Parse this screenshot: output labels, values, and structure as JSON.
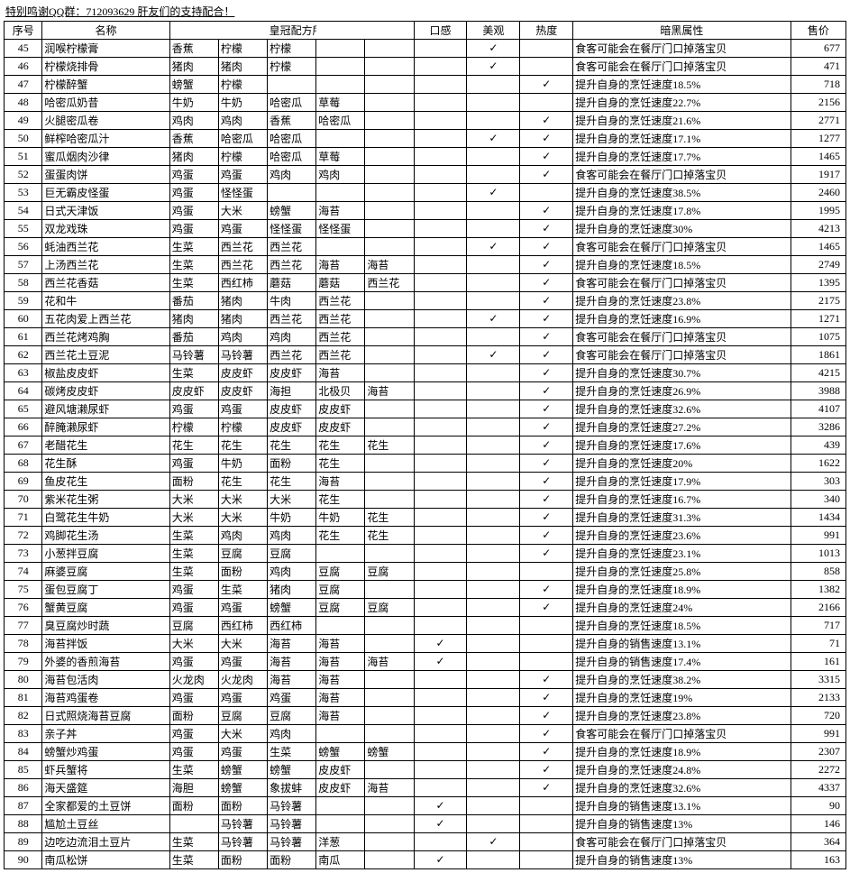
{
  "headerNote": "特别鸣谢QQ群：712093629 肝友们的支持配合！",
  "columns": {
    "idx": "序号",
    "name": "名称",
    "ingredients": "皇冠配方所需食材",
    "taste": "口感",
    "look": "美观",
    "heat": "热度",
    "dark": "暗黑属性",
    "price": "售价"
  },
  "rows": [
    {
      "idx": 45,
      "name": "润喉柠檬膏",
      "ing": [
        "香蕉",
        "柠檬",
        "柠檬",
        "",
        ""
      ],
      "taste": "",
      "look": "✓",
      "heat": "",
      "dark": "食客可能会在餐厅门口掉落宝贝",
      "price": 677
    },
    {
      "idx": 46,
      "name": "柠檬烧排骨",
      "ing": [
        "猪肉",
        "猪肉",
        "柠檬",
        "",
        ""
      ],
      "taste": "",
      "look": "✓",
      "heat": "",
      "dark": "食客可能会在餐厅门口掉落宝贝",
      "price": 471
    },
    {
      "idx": 47,
      "name": "柠檬醉蟹",
      "ing": [
        "螃蟹",
        "柠檬",
        "",
        "",
        ""
      ],
      "taste": "",
      "look": "",
      "heat": "✓",
      "dark": "提升自身的烹饪速度18.5%",
      "price": 718
    },
    {
      "idx": 48,
      "name": "哈密瓜奶昔",
      "ing": [
        "牛奶",
        "牛奶",
        "哈密瓜",
        "草莓",
        ""
      ],
      "taste": "",
      "look": "",
      "heat": "",
      "dark": "提升自身的烹饪速度22.7%",
      "price": 2156
    },
    {
      "idx": 49,
      "name": "火腿密瓜卷",
      "ing": [
        "鸡肉",
        "鸡肉",
        "香蕉",
        "哈密瓜",
        ""
      ],
      "taste": "",
      "look": "",
      "heat": "✓",
      "dark": "提升自身的烹饪速度21.6%",
      "price": 2771
    },
    {
      "idx": 50,
      "name": "鲜榨哈密瓜汁",
      "ing": [
        "香蕉",
        "哈密瓜",
        "哈密瓜",
        "",
        ""
      ],
      "taste": "",
      "look": "✓",
      "heat": "✓",
      "dark": "提升自身的烹饪速度17.1%",
      "price": 1277
    },
    {
      "idx": 51,
      "name": "蜜瓜烟肉沙律",
      "ing": [
        "猪肉",
        "柠檬",
        "哈密瓜",
        "草莓",
        ""
      ],
      "taste": "",
      "look": "",
      "heat": "✓",
      "dark": "提升自身的烹饪速度17.7%",
      "price": 1465
    },
    {
      "idx": 52,
      "name": "蛋蛋肉饼",
      "ing": [
        "鸡蛋",
        "鸡蛋",
        "鸡肉",
        "鸡肉",
        ""
      ],
      "taste": "",
      "look": "",
      "heat": "✓",
      "dark": "食客可能会在餐厅门口掉落宝贝",
      "price": 1917
    },
    {
      "idx": 53,
      "name": "巨无霸皮怪蛋",
      "ing": [
        "鸡蛋",
        "怪怪蛋",
        "",
        "",
        ""
      ],
      "taste": "",
      "look": "✓",
      "heat": "",
      "dark": "提升自身的烹饪速度38.5%",
      "price": 2460
    },
    {
      "idx": 54,
      "name": "日式天津饭",
      "ing": [
        "鸡蛋",
        "大米",
        "螃蟹",
        "海苔",
        ""
      ],
      "taste": "",
      "look": "",
      "heat": "✓",
      "dark": "提升自身的烹饪速度17.8%",
      "price": 1995
    },
    {
      "idx": 55,
      "name": "双龙戏珠",
      "ing": [
        "鸡蛋",
        "鸡蛋",
        "怪怪蛋",
        "怪怪蛋",
        ""
      ],
      "taste": "",
      "look": "",
      "heat": "✓",
      "dark": "提升自身的烹饪速度30%",
      "price": 4213
    },
    {
      "idx": 56,
      "name": "蚝油西兰花",
      "ing": [
        "生菜",
        "西兰花",
        "西兰花",
        "",
        ""
      ],
      "taste": "",
      "look": "✓",
      "heat": "✓",
      "dark": "食客可能会在餐厅门口掉落宝贝",
      "price": 1465
    },
    {
      "idx": 57,
      "name": "上汤西兰花",
      "ing": [
        "生菜",
        "西兰花",
        "西兰花",
        "海苔",
        "海苔"
      ],
      "taste": "",
      "look": "",
      "heat": "✓",
      "dark": "提升自身的烹饪速度18.5%",
      "price": 2749
    },
    {
      "idx": 58,
      "name": "西兰花香菇",
      "ing": [
        "生菜",
        "西红柿",
        "蘑菇",
        "蘑菇",
        "西兰花"
      ],
      "taste": "",
      "look": "",
      "heat": "✓",
      "dark": "食客可能会在餐厅门口掉落宝贝",
      "price": 1395
    },
    {
      "idx": 59,
      "name": "花和牛",
      "ing": [
        "番茄",
        "猪肉",
        "牛肉",
        "西兰花",
        ""
      ],
      "taste": "",
      "look": "",
      "heat": "✓",
      "dark": "提升自身的烹饪速度23.8%",
      "price": 2175
    },
    {
      "idx": 60,
      "name": "五花肉爱上西兰花",
      "ing": [
        "猪肉",
        "猪肉",
        "西兰花",
        "西兰花",
        ""
      ],
      "taste": "",
      "look": "✓",
      "heat": "✓",
      "dark": "提升自身的烹饪速度16.9%",
      "price": 1271
    },
    {
      "idx": 61,
      "name": "西兰花烤鸡胸",
      "ing": [
        "番茄",
        "鸡肉",
        "鸡肉",
        "西兰花",
        ""
      ],
      "taste": "",
      "look": "",
      "heat": "✓",
      "dark": "食客可能会在餐厅门口掉落宝贝",
      "price": 1075
    },
    {
      "idx": 62,
      "name": "西兰花土豆泥",
      "ing": [
        "马铃薯",
        "马铃薯",
        "西兰花",
        "西兰花",
        ""
      ],
      "taste": "",
      "look": "✓",
      "heat": "✓",
      "dark": "食客可能会在餐厅门口掉落宝贝",
      "price": 1861
    },
    {
      "idx": 63,
      "name": "椒盐皮皮虾",
      "ing": [
        "生菜",
        "皮皮虾",
        "皮皮虾",
        "海苔",
        ""
      ],
      "taste": "",
      "look": "",
      "heat": "✓",
      "dark": "提升自身的烹饪速度30.7%",
      "price": 4215
    },
    {
      "idx": 64,
      "name": "碳烤皮皮虾",
      "ing": [
        "皮皮虾",
        "皮皮虾",
        "海担",
        "北极贝",
        "海苔"
      ],
      "taste": "",
      "look": "",
      "heat": "✓",
      "dark": "提升自身的烹饪速度26.9%",
      "price": 3988
    },
    {
      "idx": 65,
      "name": "避风塘濑尿虾",
      "ing": [
        "鸡蛋",
        "鸡蛋",
        "皮皮虾",
        "皮皮虾",
        ""
      ],
      "taste": "",
      "look": "",
      "heat": "✓",
      "dark": "提升自身的烹饪速度32.6%",
      "price": 4107
    },
    {
      "idx": 66,
      "name": "醉腌濑尿虾",
      "ing": [
        "柠檬",
        "柠檬",
        "皮皮虾",
        "皮皮虾",
        ""
      ],
      "taste": "",
      "look": "",
      "heat": "✓",
      "dark": "提升自身的烹饪速度27.2%",
      "price": 3286
    },
    {
      "idx": 67,
      "name": "老醋花生",
      "ing": [
        "花生",
        "花生",
        "花生",
        "花生",
        "花生"
      ],
      "taste": "",
      "look": "",
      "heat": "✓",
      "dark": "提升自身的烹饪速度17.6%",
      "price": 439
    },
    {
      "idx": 68,
      "name": "花生酥",
      "ing": [
        "鸡蛋",
        "牛奶",
        "面粉",
        "花生",
        ""
      ],
      "taste": "",
      "look": "",
      "heat": "✓",
      "dark": "提升自身的烹饪速度20%",
      "price": 1622
    },
    {
      "idx": 69,
      "name": "鱼皮花生",
      "ing": [
        "面粉",
        "花生",
        "花生",
        "海苔",
        ""
      ],
      "taste": "",
      "look": "",
      "heat": "✓",
      "dark": "提升自身的烹饪速度17.9%",
      "price": 303
    },
    {
      "idx": 70,
      "name": "紫米花生粥",
      "ing": [
        "大米",
        "大米",
        "大米",
        "花生",
        ""
      ],
      "taste": "",
      "look": "",
      "heat": "✓",
      "dark": "提升自身的烹饪速度16.7%",
      "price": 340
    },
    {
      "idx": 71,
      "name": "白鹭花生牛奶",
      "ing": [
        "大米",
        "大米",
        "牛奶",
        "牛奶",
        "花生"
      ],
      "taste": "",
      "look": "",
      "heat": "✓",
      "dark": "提升自身的烹饪速度31.3%",
      "price": 1434
    },
    {
      "idx": 72,
      "name": "鸡脚花生汤",
      "ing": [
        "生菜",
        "鸡肉",
        "鸡肉",
        "花生",
        "花生"
      ],
      "taste": "",
      "look": "",
      "heat": "✓",
      "dark": "提升自身的烹饪速度23.6%",
      "price": 991
    },
    {
      "idx": 73,
      "name": "小葱拌豆腐",
      "ing": [
        "生菜",
        "豆腐",
        "豆腐",
        "",
        ""
      ],
      "taste": "",
      "look": "",
      "heat": "✓",
      "dark": "提升自身的烹饪速度23.1%",
      "price": 1013
    },
    {
      "idx": 74,
      "name": "麻婆豆腐",
      "ing": [
        "生菜",
        "面粉",
        "鸡肉",
        "豆腐",
        "豆腐"
      ],
      "taste": "",
      "look": "",
      "heat": "",
      "dark": "提升自身的烹饪速度25.8%",
      "price": 858
    },
    {
      "idx": 75,
      "name": "蛋包豆腐丁",
      "ing": [
        "鸡蛋",
        "生菜",
        "猪肉",
        "豆腐",
        ""
      ],
      "taste": "",
      "look": "",
      "heat": "✓",
      "dark": "提升自身的烹饪速度18.9%",
      "price": 1382
    },
    {
      "idx": 76,
      "name": "蟹黄豆腐",
      "ing": [
        "鸡蛋",
        "鸡蛋",
        "螃蟹",
        "豆腐",
        "豆腐"
      ],
      "taste": "",
      "look": "",
      "heat": "✓",
      "dark": "提升自身的烹饪速度24%",
      "price": 2166
    },
    {
      "idx": 77,
      "name": "臭豆腐炒时蔬",
      "ing": [
        "豆腐",
        "西红柿",
        "西红柿",
        "",
        ""
      ],
      "taste": "",
      "look": "",
      "heat": "",
      "dark": "提升自身的烹饪速度18.5%",
      "price": 717
    },
    {
      "idx": 78,
      "name": "海苔拌饭",
      "ing": [
        "大米",
        "大米",
        "海苔",
        "海苔",
        ""
      ],
      "taste": "✓",
      "look": "",
      "heat": "",
      "dark": "提升自身的销售速度13.1%",
      "price": 71
    },
    {
      "idx": 79,
      "name": "外婆的香煎海苔",
      "ing": [
        "鸡蛋",
        "鸡蛋",
        "海苔",
        "海苔",
        "海苔"
      ],
      "taste": "✓",
      "look": "",
      "heat": "",
      "dark": "提升自身的销售速度17.4%",
      "price": 161
    },
    {
      "idx": 80,
      "name": "海苔包活肉",
      "ing": [
        "火龙肉",
        "火龙肉",
        "海苔",
        "海苔",
        ""
      ],
      "taste": "",
      "look": "",
      "heat": "✓",
      "dark": "提升自身的烹饪速度38.2%",
      "price": 3315
    },
    {
      "idx": 81,
      "name": "海苔鸡蛋卷",
      "ing": [
        "鸡蛋",
        "鸡蛋",
        "鸡蛋",
        "海苔",
        ""
      ],
      "taste": "",
      "look": "",
      "heat": "✓",
      "dark": "提升自身的烹饪速度19%",
      "price": 2133
    },
    {
      "idx": 82,
      "name": "日式照烧海苔豆腐",
      "ing": [
        "面粉",
        "豆腐",
        "豆腐",
        "海苔",
        ""
      ],
      "taste": "",
      "look": "",
      "heat": "✓",
      "dark": "提升自身的烹饪速度23.8%",
      "price": 720
    },
    {
      "idx": 83,
      "name": "亲子丼",
      "ing": [
        "鸡蛋",
        "大米",
        "鸡肉",
        "",
        ""
      ],
      "taste": "",
      "look": "",
      "heat": "✓",
      "dark": "食客可能会在餐厅门口掉落宝贝",
      "price": 991
    },
    {
      "idx": 84,
      "name": "螃蟹炒鸡蛋",
      "ing": [
        "鸡蛋",
        "鸡蛋",
        "生菜",
        "螃蟹",
        "螃蟹"
      ],
      "taste": "",
      "look": "",
      "heat": "✓",
      "dark": "提升自身的烹饪速度18.9%",
      "price": 2307
    },
    {
      "idx": 85,
      "name": "虾兵蟹将",
      "ing": [
        "生菜",
        "螃蟹",
        "螃蟹",
        "皮皮虾",
        ""
      ],
      "taste": "",
      "look": "",
      "heat": "✓",
      "dark": "提升自身的烹饪速度24.8%",
      "price": 2272
    },
    {
      "idx": 86,
      "name": "海天盛筵",
      "ing": [
        "海胆",
        "螃蟹",
        "象拔蚌",
        "皮皮虾",
        "海苔"
      ],
      "taste": "",
      "look": "",
      "heat": "✓",
      "dark": "提升自身的烹饪速度32.6%",
      "price": 4337
    },
    {
      "idx": 87,
      "name": "全家都爱的土豆饼",
      "ing": [
        "面粉",
        "面粉",
        "马铃薯",
        "",
        ""
      ],
      "taste": "✓",
      "look": "",
      "heat": "",
      "dark": "提升自身的销售速度13.1%",
      "price": 90
    },
    {
      "idx": 88,
      "name": "尴尬土豆丝",
      "ing": [
        "",
        "马铃薯",
        "马铃薯",
        "",
        ""
      ],
      "taste": "✓",
      "look": "",
      "heat": "",
      "dark": "提升自身的销售速度13%",
      "price": 146
    },
    {
      "idx": 89,
      "name": "边吃边流泪土豆片",
      "ing": [
        "生菜",
        "马铃薯",
        "马铃薯",
        "洋葱",
        ""
      ],
      "taste": "",
      "look": "✓",
      "heat": "",
      "dark": "食客可能会在餐厅门口掉落宝贝",
      "price": 364
    },
    {
      "idx": 90,
      "name": "南瓜松饼",
      "ing": [
        "生菜",
        "面粉",
        "面粉",
        "南瓜",
        ""
      ],
      "taste": "✓",
      "look": "",
      "heat": "",
      "dark": "提升自身的销售速度13%",
      "price": 163
    }
  ]
}
